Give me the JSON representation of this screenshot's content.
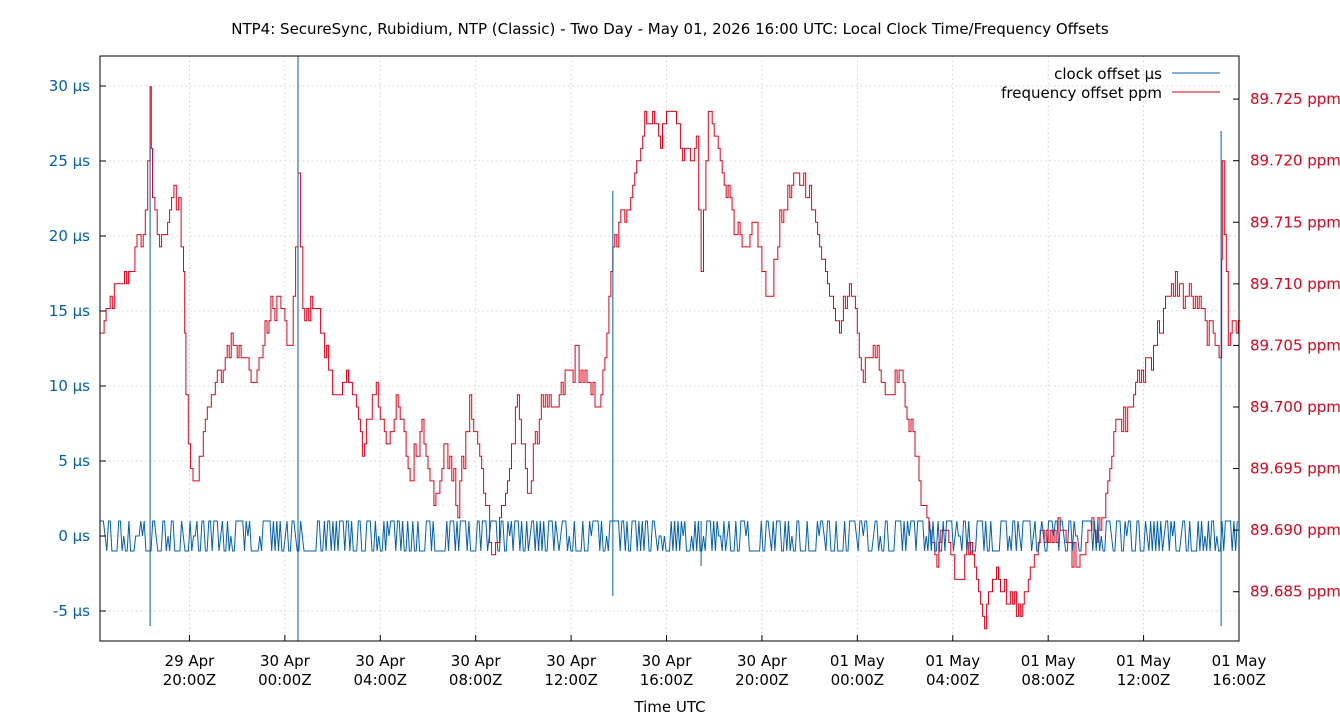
{
  "colors": {
    "clock": "#0060ad",
    "freq": "#e3001b",
    "text": "#000000",
    "grid": "#c8c8c8"
  },
  "chart_data": {
    "type": "line",
    "title": "NTP4: SecureSync, Rubidium, NTP (Classic) - Two Day - May 01, 2026 16:00 UTC: Local Clock Time/Frequency Offsets",
    "xlabel": "Time UTC",
    "ylabel_left": "",
    "ylabel_right": "",
    "grid": true,
    "legend_position": "top-right",
    "x_range": [
      "2026-04-29T16:15Z",
      "2026-05-01T16:00Z"
    ],
    "y_left_range": [
      -7,
      32
    ],
    "y_left_unit": "µs",
    "y_right_range": [
      89.681,
      89.7285
    ],
    "y_right_unit": "ppm",
    "x_tick_labels": [
      [
        "29 Apr",
        "20:00Z"
      ],
      [
        "30 Apr",
        "00:00Z"
      ],
      [
        "30 Apr",
        "04:00Z"
      ],
      [
        "30 Apr",
        "08:00Z"
      ],
      [
        "30 Apr",
        "12:00Z"
      ],
      [
        "30 Apr",
        "16:00Z"
      ],
      [
        "30 Apr",
        "20:00Z"
      ],
      [
        "01 May",
        "00:00Z"
      ],
      [
        "01 May",
        "04:00Z"
      ],
      [
        "01 May",
        "08:00Z"
      ],
      [
        "01 May",
        "12:00Z"
      ],
      [
        "01 May",
        "16:00Z"
      ]
    ],
    "x_tick_hours": [
      3.75,
      7.75,
      11.75,
      15.75,
      19.75,
      23.75,
      27.75,
      31.75,
      35.75,
      39.75,
      43.75,
      47.75
    ],
    "y_left_ticks": [
      {
        "value": -5,
        "label": "-5 µs"
      },
      {
        "value": 0,
        "label": "0 µs"
      },
      {
        "value": 5,
        "label": "5 µs"
      },
      {
        "value": 10,
        "label": "10 µs"
      },
      {
        "value": 15,
        "label": "15 µs"
      },
      {
        "value": 20,
        "label": "20 µs"
      },
      {
        "value": 25,
        "label": "25 µs"
      },
      {
        "value": 30,
        "label": "30 µs"
      }
    ],
    "y_right_ticks": [
      {
        "value": 89.685,
        "label": "89.685 ppm"
      },
      {
        "value": 89.69,
        "label": "89.690 ppm"
      },
      {
        "value": 89.695,
        "label": "89.695 ppm"
      },
      {
        "value": 89.7,
        "label": "89.700 ppm"
      },
      {
        "value": 89.705,
        "label": "89.705 ppm"
      },
      {
        "value": 89.71,
        "label": "89.710 ppm"
      },
      {
        "value": 89.715,
        "label": "89.715 ppm"
      },
      {
        "value": 89.72,
        "label": "89.720 ppm"
      },
      {
        "value": 89.725,
        "label": "89.725 ppm"
      }
    ],
    "series": [
      {
        "name": "clock offset µs",
        "axis": "left",
        "band": [
          -1,
          1
        ],
        "spikes": [
          {
            "hour": 2.1,
            "min": -6,
            "max": 26
          },
          {
            "hour": 8.3,
            "min": -7,
            "max": 32
          },
          {
            "hour": 21.5,
            "min": -4,
            "max": 23
          },
          {
            "hour": 25.2,
            "min": -2,
            "max": 1
          },
          {
            "hour": 47.0,
            "min": -6,
            "max": 27
          }
        ]
      },
      {
        "name": "frequency offset ppm",
        "axis": "right",
        "hours": [
          0,
          0.6,
          1.2,
          1.9,
          2.1,
          2.2,
          2.5,
          3.0,
          3.3,
          3.5,
          3.6,
          3.9,
          4.5,
          5.0,
          5.5,
          6.0,
          6.5,
          7.0,
          7.5,
          8.0,
          8.3,
          8.5,
          9.0,
          9.5,
          10.0,
          10.5,
          11.0,
          11.5,
          12.0,
          12.5,
          13.0,
          13.5,
          14.0,
          14.5,
          15.0,
          15.5,
          16.0,
          16.5,
          17.0,
          17.5,
          18.0,
          18.5,
          19.0,
          19.5,
          20.0,
          20.5,
          21.0,
          21.5,
          22.0,
          22.5,
          23.0,
          23.5,
          24.0,
          24.5,
          25.0,
          25.2,
          25.5,
          26.0,
          26.5,
          27.0,
          27.5,
          28.0,
          28.5,
          29.0,
          29.5,
          30.0,
          30.5,
          31.0,
          31.5,
          32.0,
          32.5,
          33.0,
          33.5,
          34.0,
          34.5,
          35.0,
          35.5,
          36.0,
          36.5,
          37.0,
          37.5,
          38.0,
          38.5,
          39.0,
          39.5,
          40.0,
          40.5,
          41.0,
          41.5,
          42.0,
          42.5,
          43.0,
          43.5,
          44.0,
          44.5,
          45.0,
          45.5,
          46.0,
          46.5,
          47.0,
          47.05,
          47.3,
          47.8
        ],
        "values": [
          89.706,
          89.709,
          89.711,
          89.715,
          89.726,
          89.716,
          89.713,
          89.717,
          89.716,
          89.711,
          89.7,
          89.693,
          89.7,
          89.703,
          89.706,
          89.704,
          89.702,
          89.707,
          89.709,
          89.704,
          89.719,
          89.707,
          89.709,
          89.704,
          89.7,
          89.703,
          89.696,
          89.702,
          89.697,
          89.7,
          89.694,
          89.699,
          89.692,
          89.697,
          89.692,
          89.7,
          89.695,
          89.688,
          89.693,
          89.7,
          89.693,
          89.701,
          89.699,
          89.702,
          89.704,
          89.701,
          89.7,
          89.713,
          89.716,
          89.72,
          89.724,
          89.722,
          89.725,
          89.72,
          89.721,
          89.711,
          89.724,
          89.72,
          89.716,
          89.712,
          89.715,
          89.708,
          89.715,
          89.718,
          89.719,
          89.715,
          89.71,
          89.707,
          89.71,
          89.703,
          89.705,
          89.701,
          89.703,
          89.698,
          89.692,
          89.688,
          89.69,
          89.685,
          89.689,
          89.682,
          89.687,
          89.685,
          89.683,
          89.687,
          89.689,
          89.69,
          89.689,
          89.688,
          89.69,
          89.691,
          89.698,
          89.699,
          89.702,
          89.704,
          89.707,
          89.71,
          89.709,
          89.708,
          89.706,
          89.705,
          89.719,
          89.706,
          89.707
        ]
      }
    ]
  }
}
